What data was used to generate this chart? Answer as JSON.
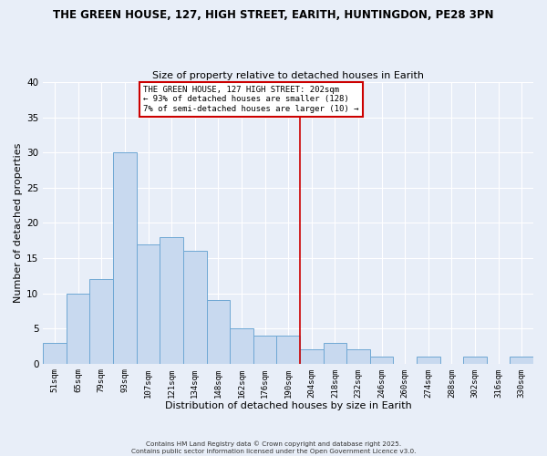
{
  "title": "THE GREEN HOUSE, 127, HIGH STREET, EARITH, HUNTINGDON, PE28 3PN",
  "subtitle": "Size of property relative to detached houses in Earith",
  "xlabel": "Distribution of detached houses by size in Earith",
  "ylabel": "Number of detached properties",
  "bin_labels": [
    "51sqm",
    "65sqm",
    "79sqm",
    "93sqm",
    "107sqm",
    "121sqm",
    "134sqm",
    "148sqm",
    "162sqm",
    "176sqm",
    "190sqm",
    "204sqm",
    "218sqm",
    "232sqm",
    "246sqm",
    "260sqm",
    "274sqm",
    "288sqm",
    "302sqm",
    "316sqm",
    "330sqm"
  ],
  "bar_heights": [
    3,
    10,
    12,
    30,
    17,
    18,
    16,
    9,
    5,
    4,
    4,
    2,
    3,
    2,
    1,
    0,
    1,
    0,
    1,
    0,
    1
  ],
  "bar_color": "#c8d9ef",
  "bar_edge_color": "#6fa8d4",
  "vline_x": 10.5,
  "vline_color": "#cc0000",
  "annotation_title": "THE GREEN HOUSE, 127 HIGH STREET: 202sqm",
  "annotation_line2": "← 93% of detached houses are smaller (128)",
  "annotation_line3": "7% of semi-detached houses are larger (10) →",
  "annotation_box_color": "#cc0000",
  "ylim": [
    0,
    40
  ],
  "yticks": [
    0,
    5,
    10,
    15,
    20,
    25,
    30,
    35,
    40
  ],
  "bg_color": "#e8eef8",
  "grid_color": "#ffffff",
  "footer1": "Contains HM Land Registry data © Crown copyright and database right 2025.",
  "footer2": "Contains public sector information licensed under the Open Government Licence v3.0."
}
